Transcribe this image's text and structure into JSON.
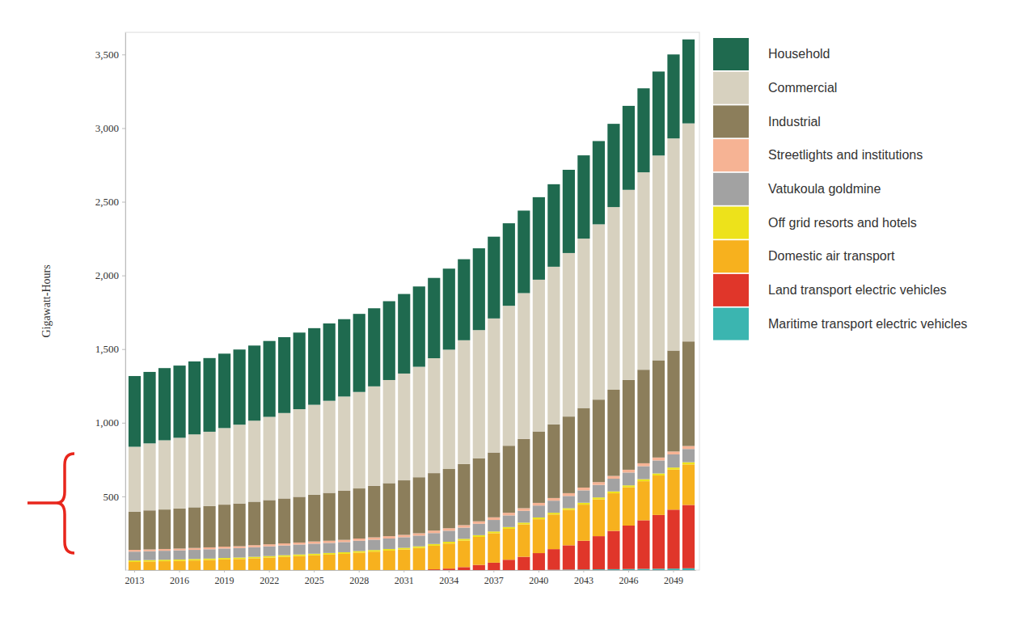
{
  "chart_data": {
    "type": "bar",
    "stacked": true,
    "grid": false,
    "legend": "right",
    "y_label": "Gigawatt-Hours",
    "categories": [
      "2013",
      null,
      null,
      "2016",
      null,
      null,
      "2019",
      null,
      null,
      "2022",
      null,
      null,
      "2025",
      null,
      null,
      "2028",
      null,
      null,
      "2031",
      null,
      null,
      "2034",
      null,
      null,
      "2037",
      null,
      null,
      "2040",
      null,
      null,
      "2043",
      null,
      null,
      "2046",
      null,
      null,
      "2049",
      null
    ],
    "ylim": [
      0,
      3650
    ],
    "yticks": [
      500,
      {
        "value": 1000,
        "label": "1,000"
      },
      {
        "value": 1500,
        "label": "1,500"
      },
      {
        "value": 2000,
        "label": "2,000"
      },
      {
        "value": 2500,
        "label": "2,500"
      },
      {
        "value": 3000,
        "label": "3,000"
      },
      {
        "value": 3500,
        "label": "3,500"
      }
    ],
    "series": [
      {
        "name": "Household",
        "color": "#1f6a4f",
        "values": [
          480,
          485,
          490,
          490,
          495,
          500,
          505,
          510,
          510,
          515,
          515,
          520,
          520,
          525,
          525,
          530,
          530,
          535,
          540,
          545,
          545,
          550,
          550,
          555,
          555,
          560,
          560,
          560,
          560,
          565,
          565,
          565,
          565,
          570,
          570,
          570,
          570,
          570
        ]
      },
      {
        "name": "Commercial",
        "color": "#d7d1bf",
        "values": [
          440,
          455,
          470,
          480,
          495,
          505,
          520,
          535,
          550,
          565,
          580,
          595,
          610,
          625,
          640,
          655,
          675,
          700,
          725,
          750,
          780,
          810,
          840,
          870,
          910,
          950,
          990,
          1030,
          1070,
          1110,
          1150,
          1190,
          1240,
          1290,
          1340,
          1390,
          1440,
          1480
        ]
      },
      {
        "name": "Industrial",
        "color": "#8c7e5b",
        "values": [
          260,
          265,
          268,
          272,
          276,
          280,
          285,
          290,
          295,
          300,
          305,
          310,
          318,
          325,
          333,
          340,
          350,
          360,
          370,
          380,
          390,
          402,
          415,
          428,
          440,
          455,
          470,
          485,
          500,
          520,
          540,
          560,
          585,
          610,
          635,
          660,
          685,
          710
        ]
      },
      {
        "name": "Streetlights and institutions",
        "color": "#f6b394",
        "values": [
          12,
          12,
          12,
          12,
          13,
          13,
          13,
          13,
          14,
          14,
          14,
          14,
          15,
          15,
          15,
          15,
          16,
          16,
          16,
          16,
          17,
          17,
          17,
          17,
          18,
          18,
          18,
          18,
          18,
          19,
          19,
          19,
          19,
          19,
          20,
          20,
          20,
          20
        ]
      },
      {
        "name": "Vatukoula goldmine",
        "color": "#a2a2a2",
        "values": [
          60,
          60,
          61,
          62,
          62,
          63,
          64,
          64,
          65,
          66,
          66,
          67,
          68,
          68,
          69,
          70,
          70,
          71,
          72,
          73,
          74,
          75,
          76,
          77,
          78,
          79,
          80,
          81,
          82,
          83,
          84,
          85,
          86,
          87,
          88,
          88,
          89,
          90
        ]
      },
      {
        "name": "Off grid resorts and hotels",
        "color": "#ede21b",
        "values": [
          10,
          10,
          10,
          10,
          10,
          10,
          10,
          10,
          10,
          10,
          11,
          11,
          11,
          11,
          11,
          11,
          11,
          11,
          11,
          11,
          12,
          12,
          12,
          12,
          12,
          12,
          12,
          12,
          12,
          12,
          13,
          13,
          13,
          13,
          14,
          14,
          14,
          15
        ]
      },
      {
        "name": "Domestic air transport",
        "color": "#f7b11e",
        "values": [
          55,
          58,
          60,
          62,
          65,
          68,
          72,
          75,
          80,
          85,
          90,
          95,
          100,
          105,
          110,
          118,
          125,
          132,
          140,
          150,
          160,
          170,
          180,
          190,
          200,
          210,
          220,
          230,
          235,
          240,
          245,
          250,
          255,
          260,
          265,
          268,
          272,
          275
        ]
      },
      {
        "name": "Land transport electric vehicles",
        "color": "#e0362a",
        "values": [
          0,
          0,
          0,
          0,
          0,
          0,
          0,
          0,
          0,
          0,
          0,
          0,
          0,
          0,
          0,
          0,
          0,
          0,
          0,
          0,
          5,
          10,
          20,
          35,
          50,
          70,
          90,
          115,
          140,
          165,
          195,
          225,
          260,
          295,
          330,
          365,
          400,
          430
        ]
      },
      {
        "name": "Maritime transport electric vehicles",
        "color": "#3bb5b0",
        "values": [
          0,
          0,
          0,
          0,
          0,
          0,
          0,
          0,
          0,
          0,
          0,
          0,
          0,
          0,
          0,
          0,
          0,
          0,
          0,
          0,
          0,
          0,
          0,
          0,
          0,
          0,
          0,
          0,
          2,
          3,
          4,
          5,
          6,
          7,
          8,
          9,
          10,
          12
        ]
      }
    ]
  }
}
